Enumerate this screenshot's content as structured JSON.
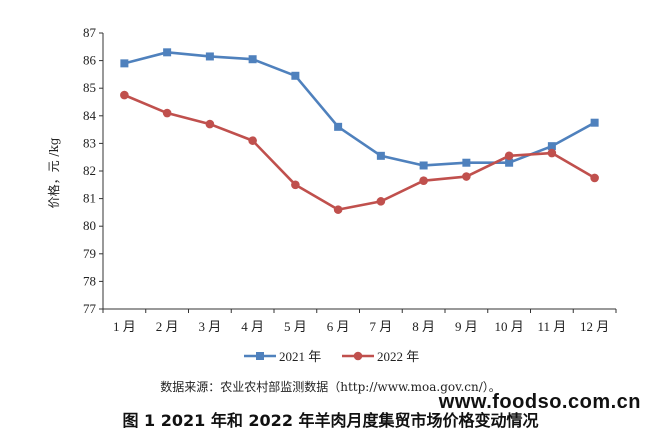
{
  "chart_data": {
    "type": "line",
    "categories": [
      "1 月",
      "2 月",
      "3 月",
      "4 月",
      "5 月",
      "6 月",
      "7 月",
      "8 月",
      "9 月",
      "10 月",
      "11 月",
      "12 月"
    ],
    "series": [
      {
        "name": "2021 年",
        "color": "#4f81bd",
        "marker": "square",
        "values": [
          85.9,
          86.3,
          86.15,
          86.05,
          85.45,
          83.6,
          82.55,
          82.2,
          82.3,
          82.3,
          82.9,
          83.75
        ]
      },
      {
        "name": "2022 年",
        "color": "#c0504d",
        "marker": "circle",
        "values": [
          84.75,
          84.1,
          83.7,
          83.1,
          81.5,
          80.6,
          80.9,
          81.65,
          81.8,
          82.55,
          82.65,
          81.75
        ]
      }
    ],
    "ylabel": "价格，元 /kg",
    "ylim": [
      77,
      87
    ],
    "yticks": [
      77,
      78,
      79,
      80,
      81,
      82,
      83,
      84,
      85,
      86,
      87
    ],
    "legend_position": "bottom"
  },
  "source_note": "数据来源：农业农村部监测数据（http://www.moa.gov.cn/）。",
  "caption": "图 1  2021 年和 2022 年羊肉月度集贸市场价格变动情况",
  "watermark": "www.foodso.com.cn"
}
